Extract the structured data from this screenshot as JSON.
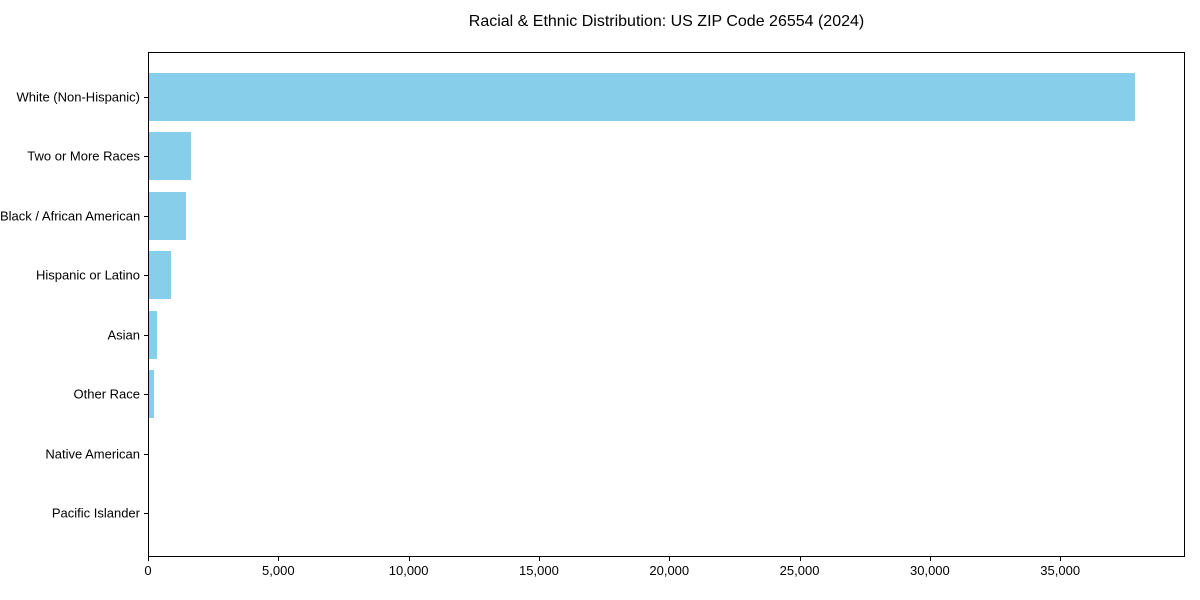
{
  "title": "Racial & Ethnic Distribution: US ZIP Code 26554 (2024)",
  "chart_data": {
    "type": "bar",
    "orientation": "horizontal",
    "title": "Racial & Ethnic Distribution: US ZIP Code 26554 (2024)",
    "xlabel": "",
    "ylabel": "",
    "categories": [
      "White (Non-Hispanic)",
      "Two or More Races",
      "Black / African American",
      "Hispanic or Latino",
      "Asian",
      "Other Race",
      "Native American",
      "Pacific Islander"
    ],
    "values": [
      37850,
      1620,
      1440,
      860,
      320,
      185,
      0,
      0
    ],
    "x_ticks": [
      0,
      5000,
      10000,
      15000,
      20000,
      25000,
      30000,
      35000
    ],
    "x_tick_labels": [
      "0",
      "5,000",
      "10,000",
      "15,000",
      "20,000",
      "25,000",
      "30,000",
      "35,000"
    ],
    "xlim": [
      0,
      39750
    ],
    "grid": false,
    "legend": null,
    "bar_color": "#87CEEB"
  },
  "colors": {
    "background": "#ffffff",
    "bar": "#87CEEB",
    "axis": "#000000",
    "text": "#000000"
  }
}
